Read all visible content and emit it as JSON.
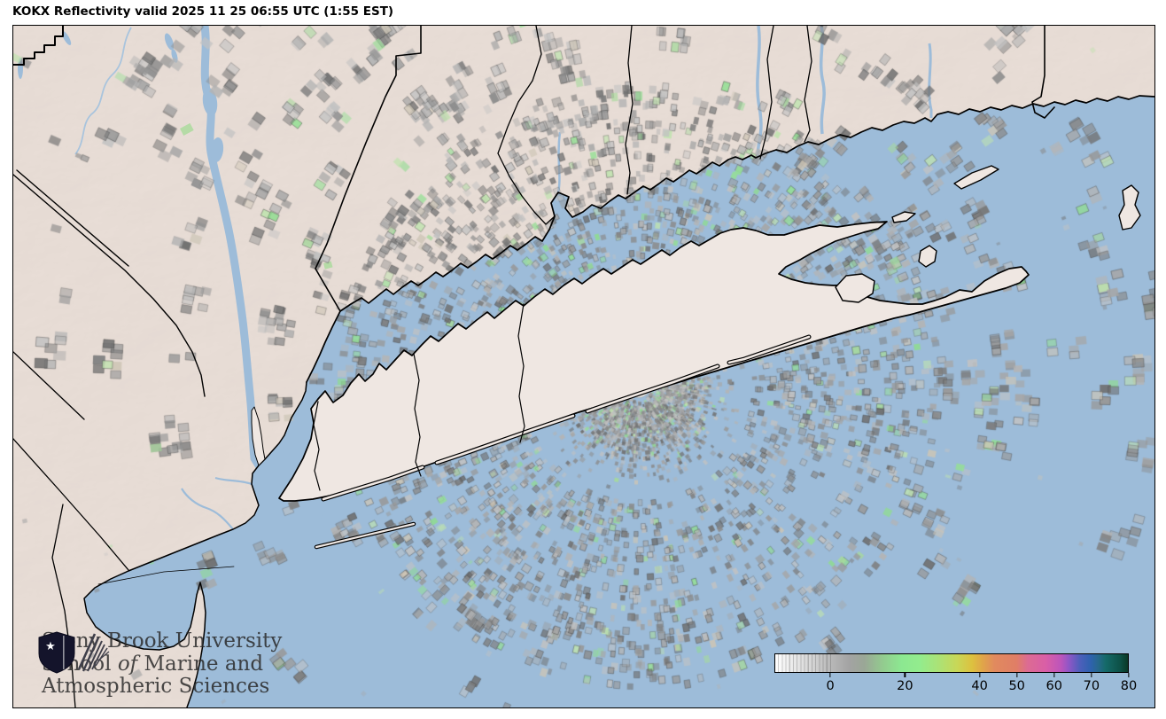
{
  "header": {
    "title": "KOKX Reflectivity valid 2025 11 25 06:55 UTC (1:55 EST)"
  },
  "logo": {
    "line1": "Stony Brook University",
    "line2_pre": "School ",
    "line2_italic": "of",
    "line2_post": " Marine and",
    "line3": "Atmospheric Sciences"
  },
  "colorbar": {
    "range": {
      "min": -15,
      "max": 80
    },
    "ticks": [
      {
        "label": "0",
        "value": 0
      },
      {
        "label": "20",
        "value": 20
      },
      {
        "label": "40",
        "value": 40
      },
      {
        "label": "50",
        "value": 50
      },
      {
        "label": "60",
        "value": 60
      },
      {
        "label": "70",
        "value": 70
      },
      {
        "label": "80",
        "value": 80
      }
    ],
    "stops": [
      {
        "value": -15,
        "color": "#ffffff"
      },
      {
        "value": -10,
        "color": "#e9e9e9"
      },
      {
        "value": -5,
        "color": "#d4d4d4"
      },
      {
        "value": 0,
        "color": "#b8b8b8"
      },
      {
        "value": 5,
        "color": "#a3a3a3"
      },
      {
        "value": 9,
        "color": "#9aa796"
      },
      {
        "value": 14,
        "color": "#93cb8f"
      },
      {
        "value": 19,
        "color": "#8ce891"
      },
      {
        "value": 24,
        "color": "#93ec8d"
      },
      {
        "value": 29,
        "color": "#abe276"
      },
      {
        "value": 34,
        "color": "#c8d757"
      },
      {
        "value": 38,
        "color": "#ddc13f"
      },
      {
        "value": 41,
        "color": "#e0a44a"
      },
      {
        "value": 44,
        "color": "#e18a5e"
      },
      {
        "value": 50,
        "color": "#e07e66"
      },
      {
        "value": 53,
        "color": "#dc6b93"
      },
      {
        "value": 58,
        "color": "#d95ea7"
      },
      {
        "value": 62,
        "color": "#bc55bb"
      },
      {
        "value": 64,
        "color": "#9156c6"
      },
      {
        "value": 67,
        "color": "#4e5fbb"
      },
      {
        "value": 70,
        "color": "#2e62ae"
      },
      {
        "value": 72,
        "color": "#27688c"
      },
      {
        "value": 74,
        "color": "#156a69"
      },
      {
        "value": 78,
        "color": "#0d5045"
      },
      {
        "value": 80,
        "color": "#093826"
      }
    ]
  },
  "map": {
    "water_color": "#9dbcd9",
    "land_color": "#efe7e2",
    "terrain_tint": "#d9b9ae",
    "outline_color": "#000000",
    "speckle_grays": [
      "#6f6f6f",
      "#7d7d7d",
      "#8a8a8a",
      "#989898",
      "#a6a6a6",
      "#b4b4b4",
      "#c2c2c2"
    ],
    "speckle_greens": [
      "#a6d99c",
      "#94e094",
      "#bfe3ae",
      "#8fdc8f"
    ],
    "speckle_tan": "#cdc5b5",
    "cone_color": "#eae6e1"
  }
}
